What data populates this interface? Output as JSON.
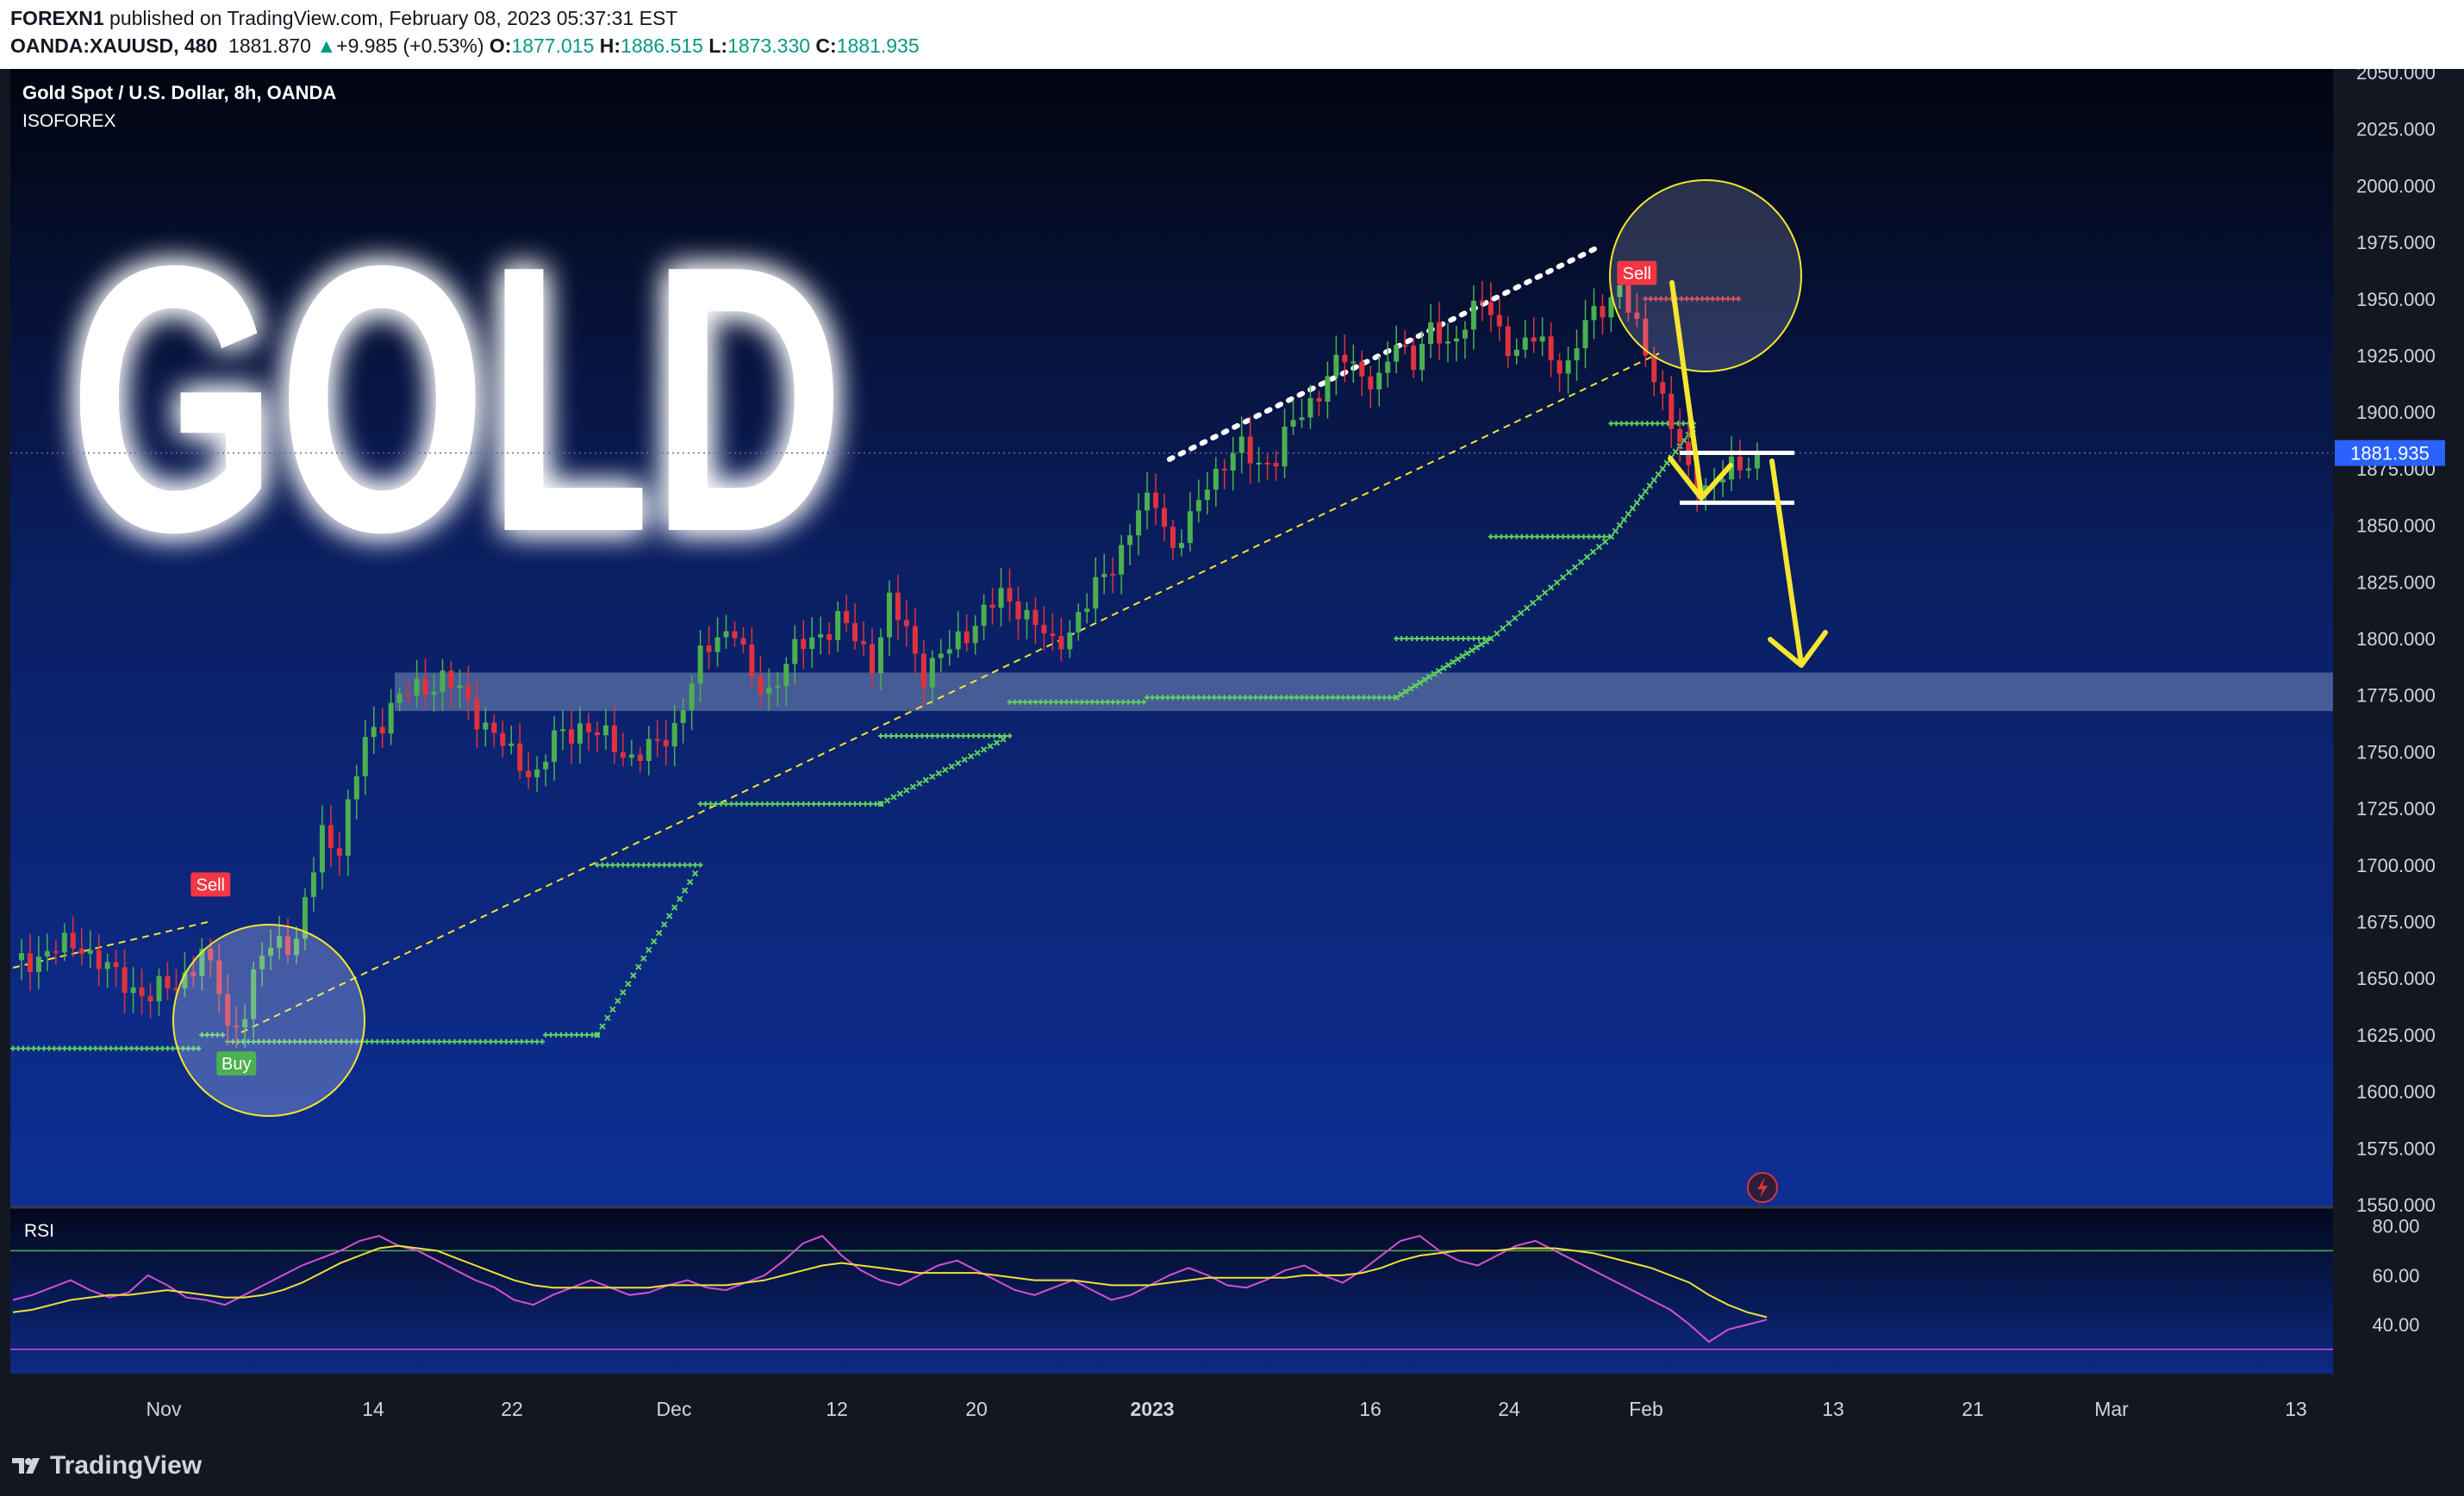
{
  "header": {
    "publisher": "FOREXN1",
    "published_on": "published on TradingView.com, February 08, 2023 05:37:31 EST",
    "symbol": "OANDA:XAUUSD, 480",
    "last": "1881.870",
    "change_arrow": "▲",
    "change": "+9.985 (+0.53%)",
    "o_label": "O:",
    "o": "1877.015",
    "h_label": "H:",
    "h": "1886.515",
    "l_label": "L:",
    "l": "1873.330",
    "c_label": "C:",
    "c": "1881.935"
  },
  "legend": {
    "title": "Gold Spot / U.S. Dollar, 8h, OANDA",
    "indicator": "ISOFOREX"
  },
  "watermark": "GOLD",
  "price_tag": "1881.935",
  "rsi_label": "RSI",
  "brand": "TradingView",
  "colors": {
    "bg_top": "#02050f",
    "bg_bottom": "#0d2f94",
    "up": "#4caf50",
    "down": "#e0323d",
    "trail": "#5fd35f",
    "rsi": "#d64fd6",
    "rsi_ma": "#f0e03a",
    "annot": "#f5e62e",
    "zone": "#8fa3c9"
  },
  "chart_data": [
    {
      "type": "candlestick",
      "title": "Gold Spot / U.S. Dollar, 8h, OANDA",
      "ylim": [
        1550,
        2050
      ],
      "y_ticks": [
        "1550.000",
        "1575.000",
        "1600.000",
        "1625.000",
        "1650.000",
        "1675.000",
        "1700.000",
        "1725.000",
        "1750.000",
        "1775.000",
        "1800.000",
        "1825.000",
        "1850.000",
        "1875.000",
        "1900.000",
        "1925.000",
        "1950.000",
        "1975.000",
        "2000.000",
        "2025.000",
        "2050.000"
      ],
      "x_ticks": [
        {
          "label": "Nov",
          "major": false
        },
        {
          "label": "14",
          "major": false
        },
        {
          "label": "22",
          "major": false
        },
        {
          "label": "Dec",
          "major": false
        },
        {
          "label": "12",
          "major": false
        },
        {
          "label": "20",
          "major": false
        },
        {
          "label": "2023",
          "major": true
        },
        {
          "label": "16",
          "major": false
        },
        {
          "label": "24",
          "major": false
        },
        {
          "label": "Feb",
          "major": false
        },
        {
          "label": "13",
          "major": false
        },
        {
          "label": "21",
          "major": false
        },
        {
          "label": "Mar",
          "major": false
        },
        {
          "label": "13",
          "major": false
        }
      ],
      "close_path": [
        [
          0,
          1655
        ],
        [
          4,
          1662
        ],
        [
          8,
          1665
        ],
        [
          12,
          1650
        ],
        [
          16,
          1642
        ],
        [
          19,
          1648
        ],
        [
          22,
          1660
        ],
        [
          24,
          1646
        ],
        [
          25,
          1628
        ],
        [
          27,
          1635
        ],
        [
          29,
          1660
        ],
        [
          31,
          1668
        ],
        [
          33,
          1665
        ],
        [
          36,
          1715
        ],
        [
          38,
          1708
        ],
        [
          41,
          1755
        ],
        [
          44,
          1770
        ],
        [
          47,
          1778
        ],
        [
          50,
          1782
        ],
        [
          52,
          1776
        ],
        [
          55,
          1762
        ],
        [
          58,
          1748
        ],
        [
          61,
          1740
        ],
        [
          63,
          1755
        ],
        [
          66,
          1762
        ],
        [
          69,
          1755
        ],
        [
          72,
          1748
        ],
        [
          75,
          1752
        ],
        [
          77,
          1762
        ],
        [
          80,
          1790
        ],
        [
          82,
          1802
        ],
        [
          84,
          1805
        ],
        [
          86,
          1780
        ],
        [
          88,
          1777
        ],
        [
          90,
          1790
        ],
        [
          93,
          1800
        ],
        [
          96,
          1808
        ],
        [
          98,
          1800
        ],
        [
          100,
          1790
        ],
        [
          102,
          1815
        ],
        [
          104,
          1803
        ],
        [
          106,
          1785
        ],
        [
          109,
          1795
        ],
        [
          112,
          1808
        ],
        [
          115,
          1818
        ],
        [
          117,
          1815
        ],
        [
          119,
          1806
        ],
        [
          121,
          1796
        ],
        [
          123,
          1805
        ],
        [
          125,
          1815
        ],
        [
          127,
          1828
        ],
        [
          129,
          1840
        ],
        [
          131,
          1855
        ],
        [
          133,
          1862
        ],
        [
          135,
          1840
        ],
        [
          137,
          1850
        ],
        [
          139,
          1870
        ],
        [
          141,
          1878
        ],
        [
          143,
          1883
        ],
        [
          145,
          1878
        ],
        [
          147,
          1880
        ],
        [
          149,
          1895
        ],
        [
          151,
          1905
        ],
        [
          153,
          1915
        ],
        [
          155,
          1924
        ],
        [
          157,
          1918
        ],
        [
          159,
          1912
        ],
        [
          161,
          1930
        ],
        [
          163,
          1925
        ],
        [
          165,
          1935
        ],
        [
          167,
          1928
        ],
        [
          169,
          1942
        ],
        [
          171,
          1948
        ],
        [
          173,
          1935
        ],
        [
          175,
          1928
        ],
        [
          177,
          1932
        ],
        [
          179,
          1925
        ],
        [
          181,
          1920
        ],
        [
          183,
          1938
        ],
        [
          185,
          1948
        ],
        [
          187,
          1955
        ],
        [
          189,
          1935
        ],
        [
          191,
          1918
        ],
        [
          193,
          1895
        ],
        [
          195,
          1872
        ],
        [
          197,
          1868
        ],
        [
          199,
          1872
        ],
        [
          201,
          1875
        ],
        [
          203,
          1882
        ]
      ],
      "signals": [
        {
          "label": "Sell",
          "bar": 23,
          "price": 1680
        },
        {
          "label": "Buy",
          "bar": 26,
          "price": 1620
        },
        {
          "label": "Sell",
          "bar": 189,
          "price": 1950
        }
      ],
      "trail_segments": [
        {
          "from": 0,
          "to": 22,
          "price": 1619
        },
        {
          "from": 22,
          "to": 25,
          "price": 1625
        },
        {
          "from": 25,
          "to": 62,
          "price": 1622
        },
        {
          "from": 62,
          "to": 68,
          "price": 1625
        },
        {
          "from": 68,
          "to": 80,
          "price": 1700
        },
        {
          "from": 80,
          "to": 101,
          "price": 1727
        },
        {
          "from": 101,
          "to": 116,
          "price": 1757
        },
        {
          "from": 116,
          "to": 132,
          "price": 1772
        },
        {
          "from": 132,
          "to": 161,
          "price": 1774
        },
        {
          "from": 161,
          "to": 172,
          "price": 1800
        },
        {
          "from": 172,
          "to": 186,
          "price": 1845
        },
        {
          "from": 186,
          "to": 196,
          "price": 1895
        },
        {
          "from": 190,
          "to": 201,
          "price": 1950
        }
      ],
      "support_zone": [
        1768,
        1785
      ],
      "range_box": [
        1860,
        1882
      ],
      "last_price": 1881.935
    },
    {
      "type": "line",
      "title": "RSI",
      "ylim": [
        25,
        82
      ],
      "y_ticks": [
        "40.00",
        "60.00",
        "80.00"
      ],
      "bands": [
        70,
        30
      ],
      "series": [
        {
          "values": [
            50,
            52,
            55,
            58,
            54,
            51,
            53,
            60,
            56,
            51,
            50,
            48,
            52,
            56,
            60,
            64,
            67,
            70,
            74,
            76,
            72,
            70,
            66,
            62,
            58,
            55,
            50,
            48,
            52,
            55,
            58,
            55,
            52,
            53,
            56,
            58,
            55,
            54,
            57,
            60,
            66,
            73,
            76,
            68,
            62,
            58,
            56,
            60,
            64,
            66,
            62,
            58,
            54,
            52,
            55,
            58,
            54,
            50,
            52,
            56,
            60,
            63,
            60,
            56,
            55,
            58,
            62,
            64,
            60,
            57,
            62,
            68,
            74,
            76,
            70,
            66,
            64,
            68,
            72,
            74,
            70,
            66,
            62,
            58,
            54,
            50,
            46,
            40,
            33,
            38,
            40,
            42
          ]
        },
        {
          "values": [
            45,
            46,
            48,
            50,
            51,
            52,
            52,
            53,
            54,
            53,
            52,
            51,
            51,
            52,
            54,
            57,
            61,
            65,
            68,
            71,
            72,
            71,
            70,
            67,
            64,
            61,
            58,
            56,
            55,
            55,
            55,
            55,
            55,
            55,
            56,
            56,
            56,
            56,
            57,
            58,
            60,
            62,
            64,
            65,
            64,
            63,
            62,
            61,
            61,
            61,
            61,
            60,
            59,
            58,
            58,
            58,
            57,
            56,
            56,
            56,
            57,
            58,
            59,
            59,
            59,
            59,
            59,
            60,
            60,
            60,
            61,
            63,
            66,
            68,
            69,
            70,
            70,
            70,
            71,
            71,
            71,
            70,
            69,
            67,
            65,
            63,
            60,
            57,
            52,
            48,
            45,
            43
          ]
        }
      ]
    }
  ]
}
